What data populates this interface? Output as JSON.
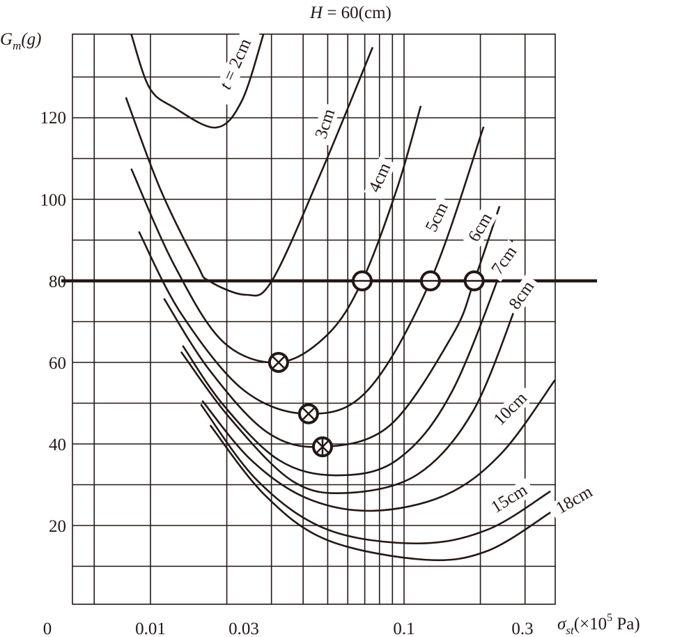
{
  "chart_data": {
    "type": "line",
    "title": "H = 60(cm)",
    "title_parts": {
      "var": "H",
      "rest": " = 60(cm)"
    },
    "ylabel": "Gm(g)",
    "ylabel_parts": {
      "main": "G",
      "sub": "m",
      "unit": "(g)"
    },
    "xlabel": "σst(×10^5 Pa)",
    "xlabel_parts": {
      "main": "σ",
      "sub": "st",
      "pre": "(×10",
      "sup": "5",
      "post": " Pa)"
    },
    "x_scale": "log",
    "xlim": [
      0.005,
      0.4
    ],
    "ylim": [
      0,
      140
    ],
    "grid": true,
    "x_ticks": [
      "0",
      "0.01",
      "0.03",
      "0.1",
      "0.3"
    ],
    "y_ticks": [
      "20",
      "40",
      "60",
      "80",
      "100",
      "120"
    ],
    "x_gridlines": [
      0.006,
      0.01,
      0.02,
      0.03,
      0.04,
      0.05,
      0.06,
      0.07,
      0.08,
      0.09,
      0.1,
      0.2,
      0.3
    ],
    "y_gridlines": [
      10,
      20,
      30,
      40,
      50,
      60,
      70,
      80,
      90,
      100,
      110,
      120,
      130
    ],
    "reference_line": {
      "y": 80
    },
    "series": [
      {
        "name": "t = 2cm",
        "label_var": "t",
        "label_rest": " = 2cm",
        "points": [
          [
            0.0084,
            140.5
          ],
          [
            0.0099,
            127.4
          ],
          [
            0.0124,
            122.5
          ],
          [
            0.0181,
            117.6
          ],
          [
            0.0229,
            124.1
          ],
          [
            0.0279,
            140.5
          ]
        ]
      },
      {
        "name": "3cm",
        "points": [
          [
            0.008,
            125
          ],
          [
            0.0109,
            102.7
          ],
          [
            0.0153,
            83.9
          ],
          [
            0.017,
            80
          ],
          [
            0.0237,
            76.6
          ],
          [
            0.0301,
            80
          ],
          [
            0.0468,
            106.2
          ],
          [
            0.0752,
            137.3
          ]
        ]
      },
      {
        "name": "4cm",
        "points": [
          [
            0.0084,
            107.5
          ],
          [
            0.0124,
            83.9
          ],
          [
            0.0193,
            65.1
          ],
          [
            0.032,
            60
          ],
          [
            0.0499,
            66.8
          ],
          [
            0.0684,
            80
          ],
          [
            0.0939,
            102.7
          ],
          [
            0.1164,
            122.9
          ]
        ]
      },
      {
        "name": "5cm",
        "points": [
          [
            0.009,
            92.1
          ],
          [
            0.0132,
            72
          ],
          [
            0.0233,
            53.2
          ],
          [
            0.042,
            47.4
          ],
          [
            0.072,
            53.2
          ],
          [
            0.1271,
            80
          ],
          [
            0.206,
            117.8
          ]
        ]
      },
      {
        "name": "6cm",
        "points": [
          [
            0.0113,
            75.7
          ],
          [
            0.017,
            58.3
          ],
          [
            0.0288,
            42.9
          ],
          [
            0.0477,
            39.3
          ],
          [
            0.0881,
            44.6
          ],
          [
            0.1556,
            66.8
          ],
          [
            0.189,
            80
          ],
          [
            0.238,
            98.3
          ]
        ]
      },
      {
        "name": "7cm",
        "points": [
          [
            0.0134,
            64.1
          ],
          [
            0.0193,
            49.7
          ],
          [
            0.032,
            36.1
          ],
          [
            0.0538,
            32.3
          ],
          [
            0.0939,
            36.1
          ],
          [
            0.1556,
            53.2
          ],
          [
            0.267,
            89.9
          ]
        ]
      },
      {
        "name": "8cm",
        "points": [
          [
            0.0132,
            62.6
          ],
          [
            0.0206,
            46.3
          ],
          [
            0.0363,
            30.9
          ],
          [
            0.0603,
            28
          ],
          [
            0.1135,
            32.6
          ],
          [
            0.187,
            48
          ],
          [
            0.279,
            74.5
          ]
        ]
      },
      {
        "name": "10cm",
        "points": [
          [
            0.016,
            50.6
          ],
          [
            0.0249,
            36.1
          ],
          [
            0.0413,
            26.7
          ],
          [
            0.0752,
            23.6
          ],
          [
            0.146,
            27.5
          ],
          [
            0.243,
            37.8
          ],
          [
            0.394,
            55.7
          ]
        ]
      },
      {
        "name": "15cm",
        "points": [
          [
            0.0158,
            49.7
          ],
          [
            0.0265,
            30.9
          ],
          [
            0.0499,
            19
          ],
          [
            0.1135,
            15.6
          ],
          [
            0.214,
            19
          ],
          [
            0.378,
            28.4
          ]
        ]
      },
      {
        "name": "18cm",
        "points": [
          [
            0.0172,
            44.6
          ],
          [
            0.0282,
            27.5
          ],
          [
            0.0499,
            16.4
          ],
          [
            0.1209,
            11.6
          ],
          [
            0.214,
            13.8
          ],
          [
            0.378,
            23.2
          ]
        ]
      }
    ],
    "markers": [
      {
        "type": "circle-cross",
        "x": 0.032,
        "y": 60
      },
      {
        "type": "circle-cross",
        "x": 0.042,
        "y": 47.4
      },
      {
        "type": "circle-asterisk",
        "x": 0.0477,
        "y": 39.3
      },
      {
        "type": "circle-bar",
        "x": 0.0684,
        "y": 80
      },
      {
        "type": "circle-bar",
        "x": 0.1271,
        "y": 80
      },
      {
        "type": "circle-bar",
        "x": 0.189,
        "y": 80
      }
    ]
  }
}
